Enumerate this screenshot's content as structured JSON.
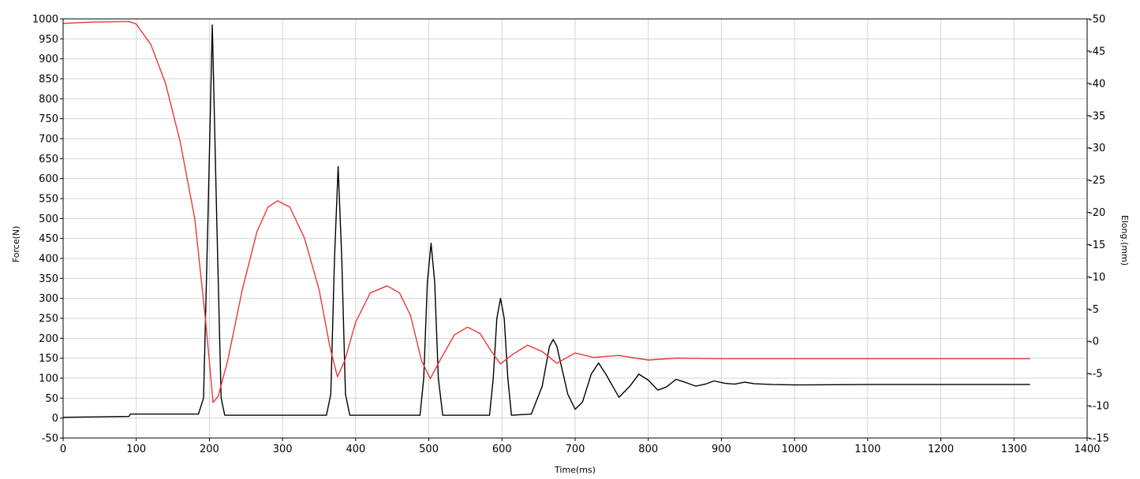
{
  "chart_data": {
    "type": "line",
    "title": "",
    "xlabel": "Time(ms)",
    "ylabel_left": "Force(N)",
    "ylabel_right": "Elong.(mm)",
    "xlim": [
      0,
      1400
    ],
    "ylim_left": [
      -50,
      1000
    ],
    "ylim_right": [
      -15,
      50
    ],
    "x_ticks": [
      0,
      100,
      200,
      300,
      400,
      500,
      600,
      700,
      800,
      900,
      1000,
      1100,
      1200,
      1300,
      1400
    ],
    "y_left_ticks": [
      -50,
      0,
      50,
      100,
      150,
      200,
      250,
      300,
      350,
      400,
      450,
      500,
      550,
      600,
      650,
      700,
      750,
      800,
      850,
      900,
      950,
      1000
    ],
    "y_right_ticks": [
      -15,
      -10,
      -5,
      0,
      5,
      10,
      15,
      20,
      25,
      30,
      35,
      40,
      45,
      50
    ],
    "grid": true,
    "series": [
      {
        "axis": "left",
        "color": "#000000",
        "points": [
          [
            0,
            2
          ],
          [
            90,
            4
          ],
          [
            92,
            10
          ],
          [
            185,
            10
          ],
          [
            192,
            50
          ],
          [
            198,
            500
          ],
          [
            204,
            985
          ],
          [
            210,
            500
          ],
          [
            216,
            50
          ],
          [
            221,
            7
          ],
          [
            360,
            7
          ],
          [
            366,
            60
          ],
          [
            371,
            400
          ],
          [
            376,
            630
          ],
          [
            381,
            400
          ],
          [
            386,
            60
          ],
          [
            392,
            7
          ],
          [
            488,
            7
          ],
          [
            493,
            100
          ],
          [
            498,
            340
          ],
          [
            503,
            438
          ],
          [
            508,
            340
          ],
          [
            513,
            100
          ],
          [
            519,
            7
          ],
          [
            583,
            7
          ],
          [
            588,
            100
          ],
          [
            593,
            250
          ],
          [
            598,
            300
          ],
          [
            603,
            250
          ],
          [
            608,
            100
          ],
          [
            613,
            7
          ],
          [
            640,
            10
          ],
          [
            655,
            80
          ],
          [
            665,
            180
          ],
          [
            670,
            197
          ],
          [
            675,
            180
          ],
          [
            690,
            60
          ],
          [
            700,
            22
          ],
          [
            710,
            40
          ],
          [
            722,
            110
          ],
          [
            732,
            138
          ],
          [
            742,
            110
          ],
          [
            760,
            52
          ],
          [
            775,
            80
          ],
          [
            787,
            110
          ],
          [
            800,
            95
          ],
          [
            813,
            70
          ],
          [
            825,
            78
          ],
          [
            838,
            97
          ],
          [
            850,
            90
          ],
          [
            865,
            80
          ],
          [
            878,
            85
          ],
          [
            890,
            93
          ],
          [
            905,
            87
          ],
          [
            918,
            85
          ],
          [
            932,
            90
          ],
          [
            945,
            86
          ],
          [
            970,
            84
          ],
          [
            1000,
            83
          ],
          [
            1100,
            84
          ],
          [
            1200,
            84
          ],
          [
            1322,
            84
          ]
        ]
      },
      {
        "axis": "right",
        "color": "#e8383b",
        "points": [
          [
            0,
            49.3
          ],
          [
            40,
            49.5
          ],
          [
            90,
            49.6
          ],
          [
            100,
            49.2
          ],
          [
            120,
            46
          ],
          [
            140,
            40
          ],
          [
            160,
            31
          ],
          [
            180,
            19
          ],
          [
            195,
            3
          ],
          [
            205,
            -9.5
          ],
          [
            212,
            -8.5
          ],
          [
            225,
            -3
          ],
          [
            245,
            8
          ],
          [
            265,
            17
          ],
          [
            280,
            20.8
          ],
          [
            293,
            21.8
          ],
          [
            310,
            20.8
          ],
          [
            330,
            16
          ],
          [
            350,
            8
          ],
          [
            365,
            -1
          ],
          [
            375,
            -5.5
          ],
          [
            385,
            -3
          ],
          [
            400,
            3
          ],
          [
            420,
            7.5
          ],
          [
            443,
            8.6
          ],
          [
            460,
            7.5
          ],
          [
            475,
            4
          ],
          [
            490,
            -3
          ],
          [
            502,
            -5.8
          ],
          [
            515,
            -3
          ],
          [
            535,
            1
          ],
          [
            553,
            2.2
          ],
          [
            570,
            1.2
          ],
          [
            585,
            -1.5
          ],
          [
            598,
            -3.5
          ],
          [
            615,
            -2
          ],
          [
            635,
            -0.6
          ],
          [
            655,
            -1.6
          ],
          [
            675,
            -3.4
          ],
          [
            700,
            -1.8
          ],
          [
            725,
            -2.5
          ],
          [
            760,
            -2.2
          ],
          [
            800,
            -2.9
          ],
          [
            840,
            -2.6
          ],
          [
            900,
            -2.7
          ],
          [
            1000,
            -2.7
          ],
          [
            1100,
            -2.7
          ],
          [
            1200,
            -2.7
          ],
          [
            1322,
            -2.7
          ]
        ]
      }
    ]
  }
}
